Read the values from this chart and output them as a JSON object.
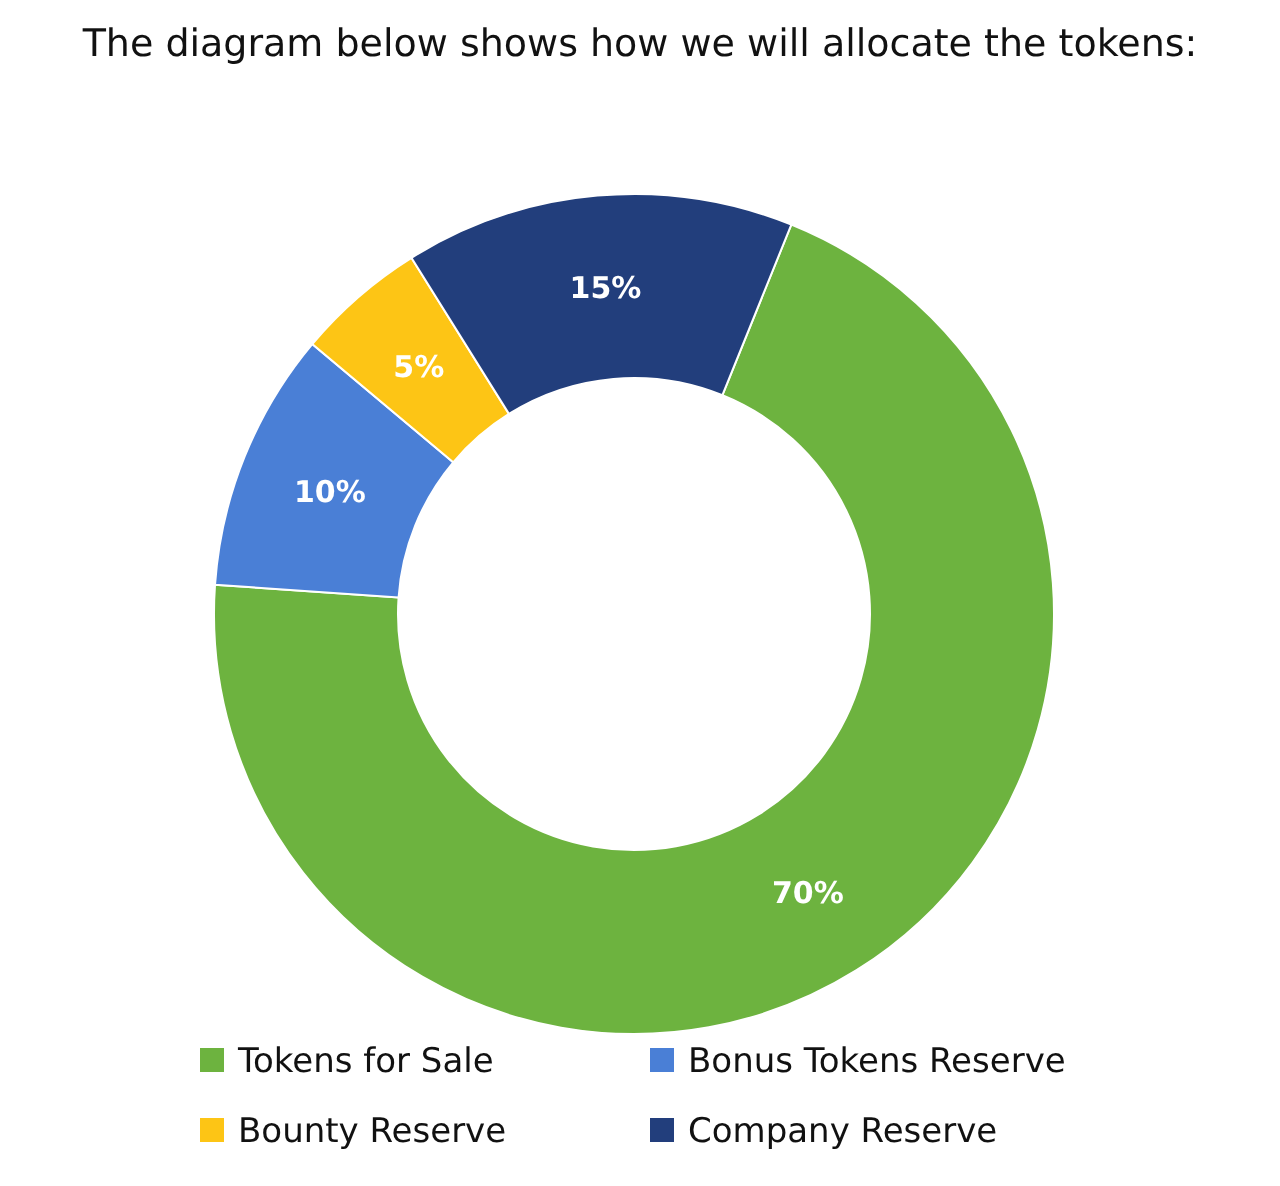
{
  "chart_data": {
    "type": "donut",
    "title": "The diagram below shows how we will allocate the tokens:",
    "categories": [
      "Tokens for Sale",
      "Bonus Tokens Reserve",
      "Bounty Reserve",
      "Company Reserve"
    ],
    "values": [
      70,
      10,
      5,
      15
    ],
    "colors": [
      "#6db33f",
      "#4a7fd6",
      "#fdc515",
      "#223e7c"
    ],
    "value_labels": [
      "70%",
      "10%",
      "5%",
      "15%"
    ],
    "legend": "bottom"
  }
}
